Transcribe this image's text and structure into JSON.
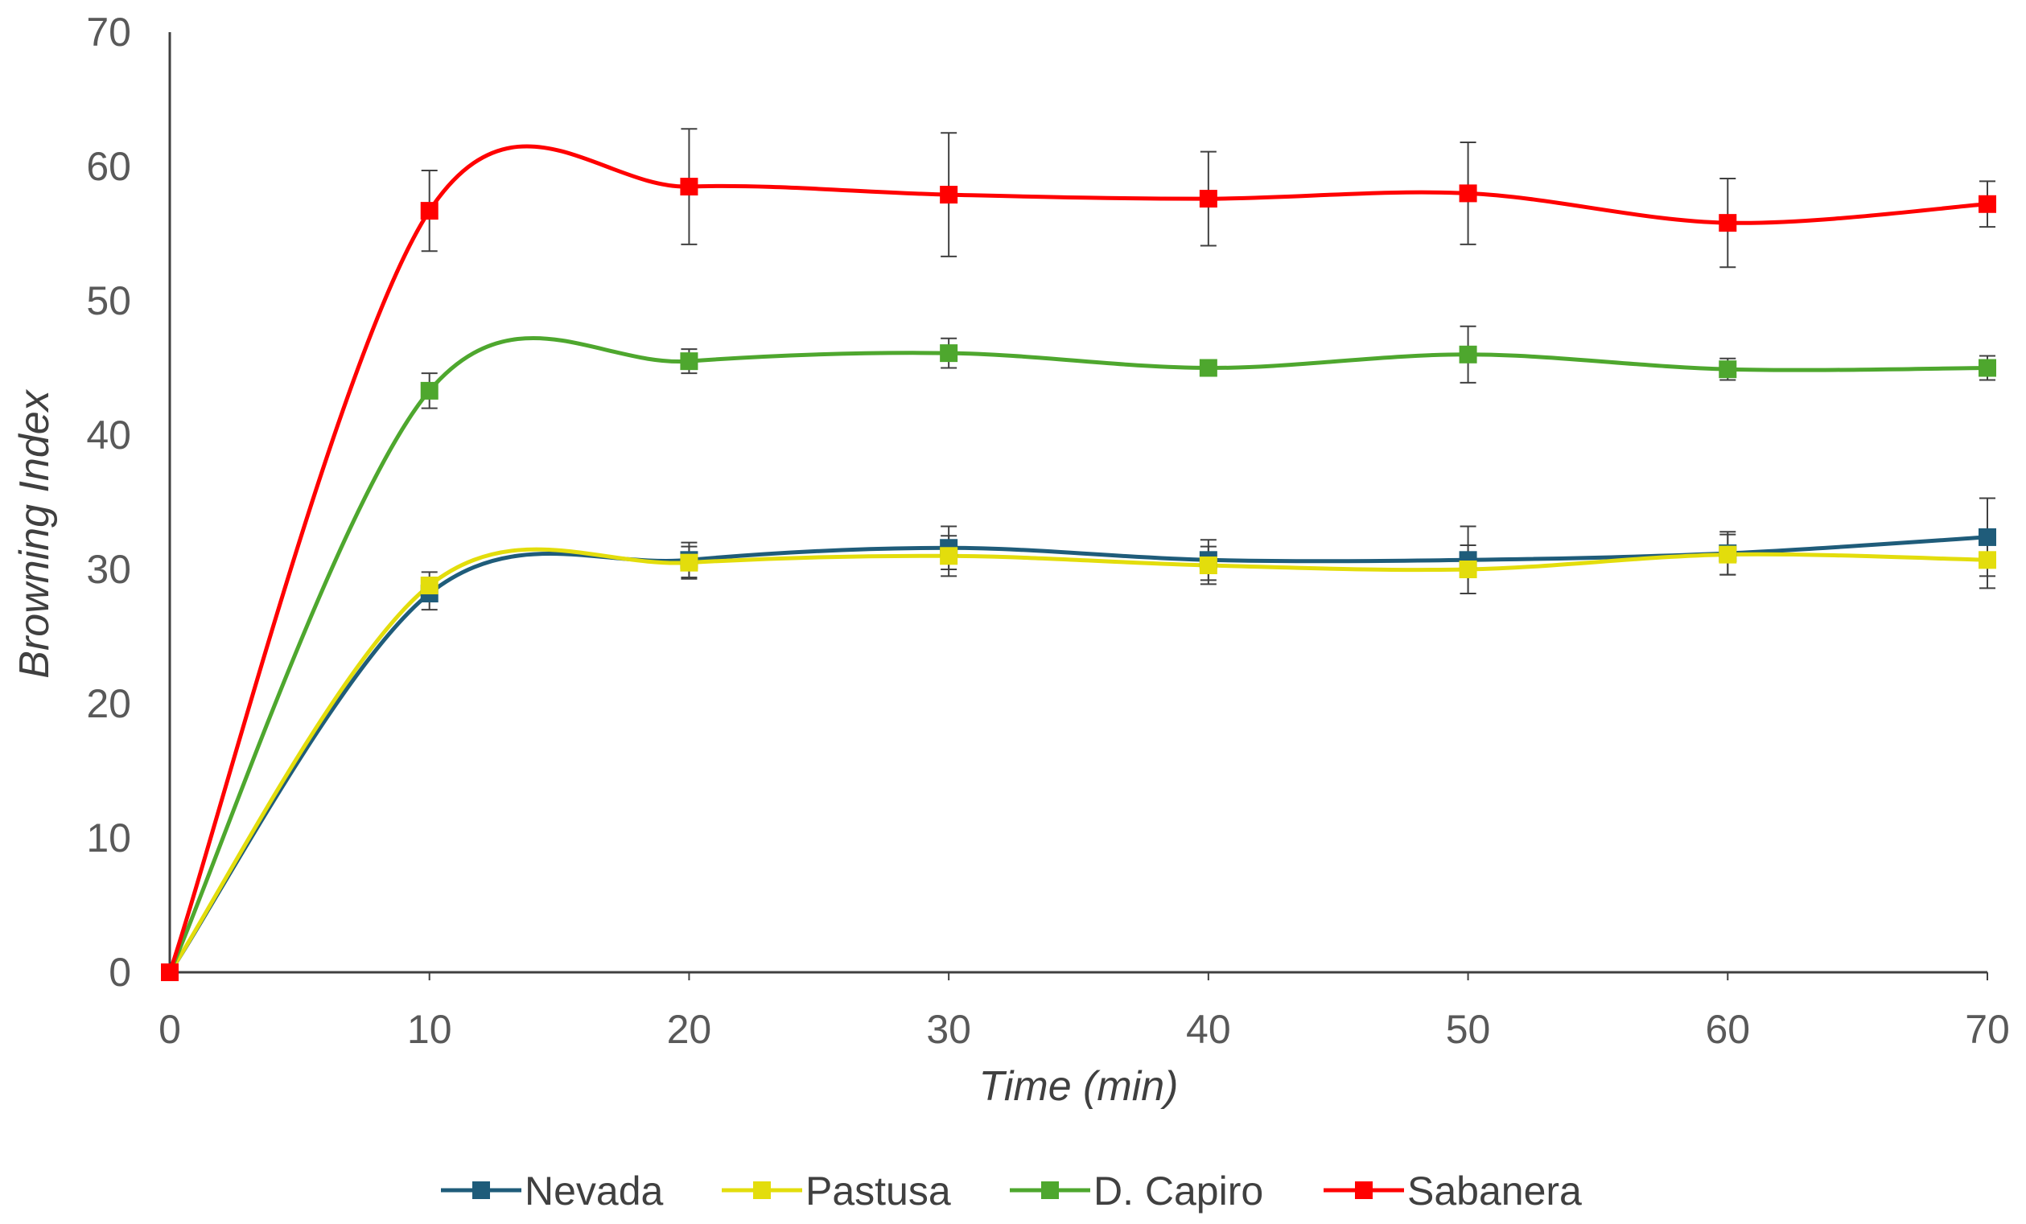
{
  "chart_data": {
    "type": "line",
    "title": "",
    "xlabel": "Time (min)",
    "ylabel": "Browning Index",
    "x": [
      0,
      10,
      20,
      30,
      40,
      50,
      60,
      70
    ],
    "xlim": [
      0,
      70
    ],
    "ylim": [
      0,
      70
    ],
    "xticks": [
      "0",
      "10",
      "20",
      "30",
      "40",
      "50",
      "60",
      "70"
    ],
    "yticks": [
      "0",
      "10",
      "20",
      "30",
      "40",
      "50",
      "60",
      "70"
    ],
    "grid": false,
    "smooth": true,
    "marker": "square",
    "error_bars": true,
    "legend_position": "bottom",
    "series": [
      {
        "name": "Nevada",
        "color": "#1F5C7A",
        "values": [
          0,
          28.2,
          30.7,
          31.6,
          30.7,
          30.7,
          31.2,
          32.4
        ],
        "errors": [
          0,
          1.2,
          1.3,
          1.6,
          1.5,
          2.5,
          1.6,
          2.9
        ]
      },
      {
        "name": "Pastusa",
        "color": "#E3DD0C",
        "values": [
          0,
          28.8,
          30.5,
          31.0,
          30.3,
          30.0,
          31.1,
          30.7
        ],
        "errors": [
          0,
          1.0,
          1.2,
          1.5,
          1.4,
          1.8,
          1.5,
          2.1
        ]
      },
      {
        "name": "D. Capiro",
        "color": "#4EA72E",
        "values": [
          0,
          43.3,
          45.5,
          46.1,
          45.0,
          46.0,
          44.9,
          45.0
        ],
        "errors": [
          0,
          1.3,
          0.9,
          1.1,
          0.4,
          2.1,
          0.8,
          0.9
        ]
      },
      {
        "name": "Sabanera",
        "color": "#FF0000",
        "values": [
          0,
          56.7,
          58.5,
          57.9,
          57.6,
          58.0,
          55.8,
          57.2
        ],
        "errors": [
          0,
          3.0,
          4.3,
          4.6,
          3.5,
          3.8,
          3.3,
          1.7
        ]
      }
    ]
  }
}
